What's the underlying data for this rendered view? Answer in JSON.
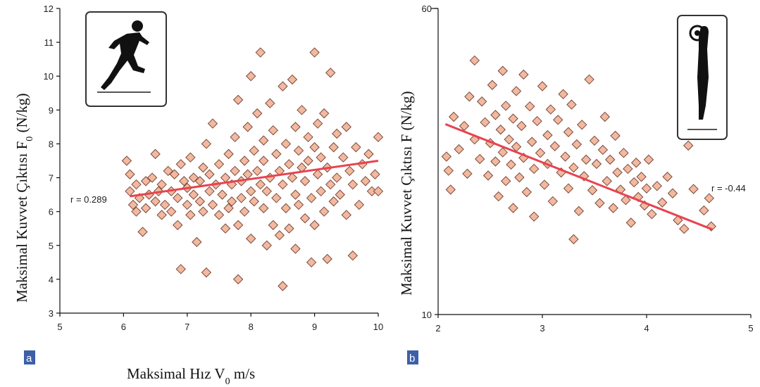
{
  "chart_data": [
    {
      "type": "scatter",
      "panel_label": "a",
      "ylabel_main": "Maksimal Kuvvet Çıktısı F",
      "ylabel_sub": "0",
      "ylabel_unit": " (N/kg)",
      "xlabel_main": "Maksimal Hız V",
      "xlabel_sub": "0",
      "xlabel_unit": " m/s",
      "xlim": [
        5,
        10
      ],
      "ylim": [
        3,
        12
      ],
      "xticks": [
        "5",
        "6",
        "7",
        "8",
        "9",
        "10"
      ],
      "yticks": [
        "3",
        "4",
        "5",
        "6",
        "7",
        "8",
        "9",
        "10",
        "11",
        "12"
      ],
      "annotation": "r = 0.289",
      "icon": "sprinter-icon",
      "trend": {
        "x": [
          6.1,
          10.0
        ],
        "y": [
          6.45,
          7.5
        ]
      },
      "points": [
        [
          6.05,
          7.5
        ],
        [
          6.1,
          7.1
        ],
        [
          6.1,
          6.6
        ],
        [
          6.15,
          6.2
        ],
        [
          6.2,
          6.8
        ],
        [
          6.2,
          6.0
        ],
        [
          6.25,
          6.4
        ],
        [
          6.3,
          5.4
        ],
        [
          6.35,
          6.9
        ],
        [
          6.35,
          6.1
        ],
        [
          6.4,
          6.5
        ],
        [
          6.45,
          7.0
        ],
        [
          6.5,
          6.3
        ],
        [
          6.55,
          6.6
        ],
        [
          6.5,
          7.7
        ],
        [
          6.6,
          5.9
        ],
        [
          6.6,
          6.8
        ],
        [
          6.65,
          6.2
        ],
        [
          6.7,
          7.2
        ],
        [
          6.75,
          6.0
        ],
        [
          6.75,
          6.6
        ],
        [
          6.8,
          7.1
        ],
        [
          6.85,
          6.4
        ],
        [
          6.85,
          5.6
        ],
        [
          6.9,
          4.3
        ],
        [
          6.9,
          7.4
        ],
        [
          6.95,
          6.9
        ],
        [
          7.0,
          6.2
        ],
        [
          7.0,
          6.7
        ],
        [
          7.05,
          7.6
        ],
        [
          7.05,
          5.9
        ],
        [
          7.1,
          6.5
        ],
        [
          7.1,
          7.0
        ],
        [
          7.15,
          5.1
        ],
        [
          7.2,
          6.3
        ],
        [
          7.2,
          6.9
        ],
        [
          7.25,
          7.3
        ],
        [
          7.25,
          6.0
        ],
        [
          7.3,
          8.0
        ],
        [
          7.3,
          4.2
        ],
        [
          7.35,
          6.6
        ],
        [
          7.35,
          7.1
        ],
        [
          7.4,
          6.2
        ],
        [
          7.4,
          8.6
        ],
        [
          7.45,
          6.8
        ],
        [
          7.5,
          7.4
        ],
        [
          7.5,
          5.9
        ],
        [
          7.55,
          6.5
        ],
        [
          7.6,
          7.0
        ],
        [
          7.6,
          5.5
        ],
        [
          7.65,
          6.1
        ],
        [
          7.65,
          7.7
        ],
        [
          7.7,
          6.8
        ],
        [
          7.7,
          6.3
        ],
        [
          7.75,
          7.2
        ],
        [
          7.75,
          8.2
        ],
        [
          7.8,
          5.6
        ],
        [
          7.8,
          9.3
        ],
        [
          7.8,
          4.0
        ],
        [
          7.85,
          6.9
        ],
        [
          7.85,
          6.4
        ],
        [
          7.9,
          7.5
        ],
        [
          7.9,
          6.0
        ],
        [
          7.95,
          8.5
        ],
        [
          7.95,
          7.1
        ],
        [
          8.0,
          6.6
        ],
        [
          8.0,
          10.0
        ],
        [
          8.0,
          5.2
        ],
        [
          8.05,
          7.8
        ],
        [
          8.05,
          6.3
        ],
        [
          8.1,
          8.9
        ],
        [
          8.1,
          7.2
        ],
        [
          8.15,
          6.8
        ],
        [
          8.15,
          10.7
        ],
        [
          8.2,
          6.1
        ],
        [
          8.2,
          7.5
        ],
        [
          8.2,
          8.1
        ],
        [
          8.25,
          5.0
        ],
        [
          8.25,
          6.6
        ],
        [
          8.3,
          9.2
        ],
        [
          8.3,
          7.0
        ],
        [
          8.35,
          5.6
        ],
        [
          8.35,
          8.4
        ],
        [
          8.4,
          6.4
        ],
        [
          8.4,
          7.7
        ],
        [
          8.45,
          5.3
        ],
        [
          8.45,
          7.2
        ],
        [
          8.5,
          9.7
        ],
        [
          8.5,
          6.8
        ],
        [
          8.5,
          3.8
        ],
        [
          8.55,
          8.0
        ],
        [
          8.55,
          6.1
        ],
        [
          8.6,
          7.4
        ],
        [
          8.6,
          5.5
        ],
        [
          8.65,
          9.9
        ],
        [
          8.65,
          7.0
        ],
        [
          8.7,
          8.5
        ],
        [
          8.7,
          6.5
        ],
        [
          8.7,
          4.9
        ],
        [
          8.75,
          7.8
        ],
        [
          8.75,
          6.2
        ],
        [
          8.8,
          9.0
        ],
        [
          8.8,
          7.3
        ],
        [
          8.85,
          5.8
        ],
        [
          8.85,
          6.9
        ],
        [
          8.9,
          8.2
        ],
        [
          8.9,
          7.5
        ],
        [
          8.95,
          4.5
        ],
        [
          8.95,
          6.4
        ],
        [
          9.0,
          10.7
        ],
        [
          9.0,
          7.9
        ],
        [
          9.0,
          5.6
        ],
        [
          9.05,
          7.1
        ],
        [
          9.05,
          8.6
        ],
        [
          9.1,
          6.6
        ],
        [
          9.1,
          7.6
        ],
        [
          9.15,
          6.0
        ],
        [
          9.15,
          8.9
        ],
        [
          9.2,
          7.3
        ],
        [
          9.2,
          4.6
        ],
        [
          9.25,
          10.1
        ],
        [
          9.25,
          6.8
        ],
        [
          9.3,
          7.9
        ],
        [
          9.3,
          6.3
        ],
        [
          9.35,
          8.3
        ],
        [
          9.35,
          7.0
        ],
        [
          9.4,
          6.5
        ],
        [
          9.45,
          7.6
        ],
        [
          9.5,
          5.9
        ],
        [
          9.5,
          8.5
        ],
        [
          9.55,
          7.2
        ],
        [
          9.6,
          4.7
        ],
        [
          9.6,
          6.8
        ],
        [
          9.65,
          7.9
        ],
        [
          9.7,
          6.2
        ],
        [
          9.75,
          7.4
        ],
        [
          9.8,
          6.9
        ],
        [
          9.85,
          7.7
        ],
        [
          9.9,
          6.6
        ],
        [
          9.95,
          7.1
        ],
        [
          10.0,
          8.2
        ],
        [
          10.0,
          6.6
        ]
      ]
    },
    {
      "type": "scatter",
      "panel_label": "b",
      "ylabel_main": "Maksimal Kuvvet Çıktısı F",
      "ylabel_sub": "",
      "ylabel_unit": " (N/kg)",
      "xlim": [
        2,
        5
      ],
      "ylim": [
        10,
        60
      ],
      "xticks": [
        "2",
        "3",
        "4",
        "5"
      ],
      "yticks": [
        "10",
        "60"
      ],
      "annotation": "r = -0.44",
      "icon": "standing-figure-icon",
      "trend": {
        "x": [
          2.07,
          4.63
        ],
        "y": [
          41.1,
          23.9
        ]
      },
      "points": [
        [
          2.08,
          35.8
        ],
        [
          2.1,
          33.5
        ],
        [
          2.12,
          30.4
        ],
        [
          2.15,
          42.3
        ],
        [
          2.2,
          37.0
        ],
        [
          2.25,
          40.8
        ],
        [
          2.28,
          33.0
        ],
        [
          2.3,
          45.6
        ],
        [
          2.35,
          38.6
        ],
        [
          2.35,
          51.5
        ],
        [
          2.4,
          35.4
        ],
        [
          2.42,
          44.8
        ],
        [
          2.45,
          41.4
        ],
        [
          2.48,
          32.7
        ],
        [
          2.5,
          38.0
        ],
        [
          2.52,
          47.5
        ],
        [
          2.55,
          35.0
        ],
        [
          2.55,
          42.6
        ],
        [
          2.58,
          29.3
        ],
        [
          2.6,
          40.2
        ],
        [
          2.62,
          36.5
        ],
        [
          2.62,
          49.8
        ],
        [
          2.65,
          31.8
        ],
        [
          2.65,
          44.1
        ],
        [
          2.68,
          38.6
        ],
        [
          2.7,
          34.5
        ],
        [
          2.72,
          42.0
        ],
        [
          2.72,
          27.4
        ],
        [
          2.75,
          46.5
        ],
        [
          2.75,
          37.4
        ],
        [
          2.78,
          32.4
        ],
        [
          2.8,
          40.8
        ],
        [
          2.82,
          35.6
        ],
        [
          2.82,
          49.2
        ],
        [
          2.85,
          30.0
        ],
        [
          2.88,
          44.0
        ],
        [
          2.9,
          38.2
        ],
        [
          2.92,
          26.0
        ],
        [
          2.92,
          33.8
        ],
        [
          2.95,
          41.6
        ],
        [
          2.98,
          36.4
        ],
        [
          3.0,
          47.3
        ],
        [
          3.02,
          31.2
        ],
        [
          3.05,
          39.3
        ],
        [
          3.05,
          34.6
        ],
        [
          3.08,
          43.5
        ],
        [
          3.1,
          28.5
        ],
        [
          3.12,
          37.5
        ],
        [
          3.15,
          41.8
        ],
        [
          3.18,
          33.2
        ],
        [
          3.2,
          46.0
        ],
        [
          3.22,
          35.8
        ],
        [
          3.25,
          30.6
        ],
        [
          3.25,
          39.8
        ],
        [
          3.28,
          44.3
        ],
        [
          3.3,
          34.0
        ],
        [
          3.3,
          22.3
        ],
        [
          3.33,
          37.8
        ],
        [
          3.35,
          26.9
        ],
        [
          3.38,
          41.0
        ],
        [
          3.4,
          32.6
        ],
        [
          3.42,
          35.3
        ],
        [
          3.45,
          48.4
        ],
        [
          3.48,
          30.3
        ],
        [
          3.5,
          38.4
        ],
        [
          3.52,
          34.6
        ],
        [
          3.55,
          28.2
        ],
        [
          3.58,
          36.9
        ],
        [
          3.6,
          42.3
        ],
        [
          3.62,
          31.8
        ],
        [
          3.65,
          35.3
        ],
        [
          3.68,
          27.4
        ],
        [
          3.7,
          39.2
        ],
        [
          3.72,
          33.2
        ],
        [
          3.75,
          30.4
        ],
        [
          3.78,
          36.4
        ],
        [
          3.8,
          28.7
        ],
        [
          3.82,
          33.8
        ],
        [
          3.85,
          25.0
        ],
        [
          3.88,
          31.6
        ],
        [
          3.9,
          34.8
        ],
        [
          3.92,
          29.2
        ],
        [
          3.95,
          32.5
        ],
        [
          3.98,
          27.8
        ],
        [
          4.0,
          30.6
        ],
        [
          4.02,
          35.3
        ],
        [
          4.05,
          26.4
        ],
        [
          4.1,
          31.0
        ],
        [
          4.15,
          28.3
        ],
        [
          4.2,
          32.5
        ],
        [
          4.25,
          29.8
        ],
        [
          4.3,
          25.4
        ],
        [
          4.36,
          24.0
        ],
        [
          4.4,
          37.6
        ],
        [
          4.45,
          30.5
        ],
        [
          4.55,
          27.0
        ],
        [
          4.6,
          29.0
        ],
        [
          4.62,
          24.4
        ]
      ]
    }
  ]
}
